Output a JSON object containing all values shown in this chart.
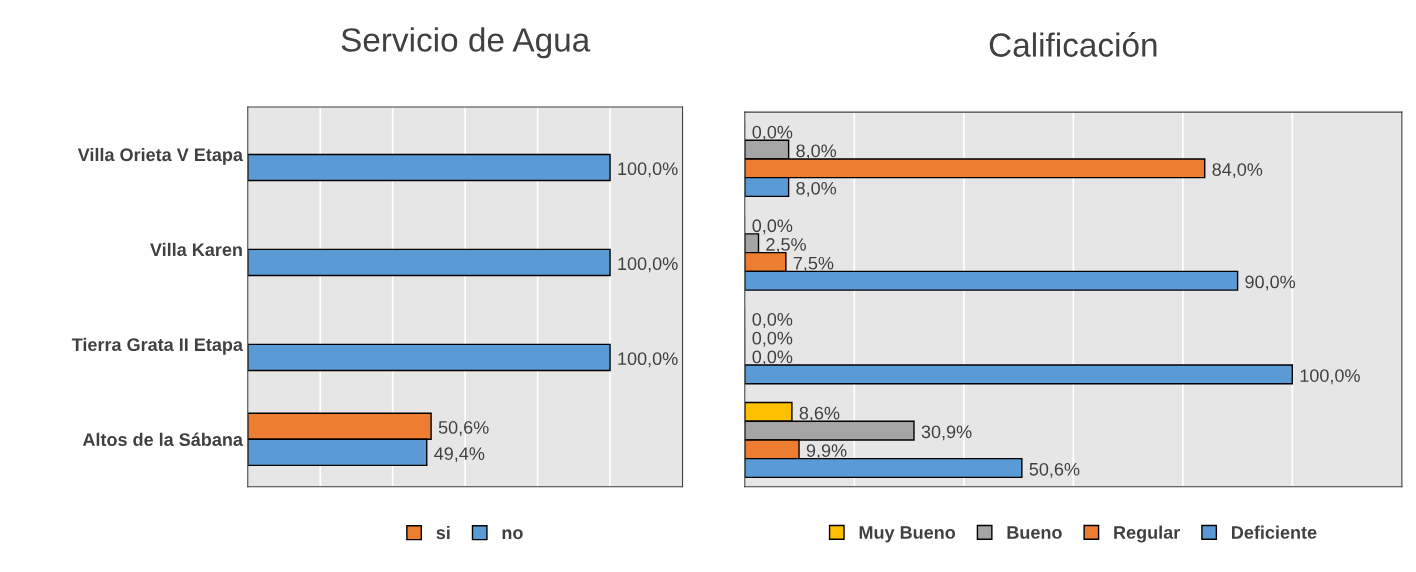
{
  "chart_data": [
    {
      "type": "bar",
      "orientation": "horizontal",
      "title": "Servicio de Agua",
      "categories": [
        "Villa Orieta V Etapa",
        "Villa Karen",
        "Tierra Grata II Etapa",
        "Altos de la Sábana"
      ],
      "series": [
        {
          "name": "si",
          "color": "#ed7d31",
          "values": [
            null,
            null,
            null,
            50.6
          ],
          "value_labels": [
            null,
            null,
            null,
            "50,6%"
          ]
        },
        {
          "name": "no",
          "color": "#5b9bd5",
          "values": [
            100.0,
            100.0,
            100.0,
            49.4
          ],
          "value_labels": [
            "100,0%",
            "100,0%",
            "100,0%",
            "49,4%"
          ]
        }
      ],
      "xlim": [
        0,
        120
      ],
      "xticks": [
        {
          "value": 0,
          "label": null
        },
        {
          "value": 20,
          "label": null
        },
        {
          "value": 40,
          "label": null
        },
        {
          "value": 60,
          "label": null
        },
        {
          "value": 80,
          "label": null
        },
        {
          "value": 100,
          "label": null
        },
        {
          "value": 120,
          "label": null
        }
      ],
      "grid": "x",
      "legend": "bottom",
      "tick_labels": "y"
    },
    {
      "type": "bar",
      "orientation": "horizontal",
      "title": "Calificación",
      "categories": [
        null,
        null,
        null,
        null
      ],
      "series": [
        {
          "name": "Muy Bueno",
          "color": "#ffc000",
          "values": [
            0.0,
            0.0,
            0.0,
            8.6
          ],
          "value_labels": [
            "0,0%",
            "0,0%",
            "0,0%",
            "8,6%"
          ]
        },
        {
          "name": "Bueno",
          "color": "#a5a5a5",
          "values": [
            8.0,
            2.5,
            0.0,
            30.9
          ],
          "value_labels": [
            "8,0%",
            "2,5%",
            "0,0%",
            "30,9%"
          ]
        },
        {
          "name": "Regular",
          "color": "#ed7d31",
          "values": [
            84.0,
            7.5,
            0.0,
            9.9
          ],
          "value_labels": [
            "84,0%",
            "7,5%",
            "0,0%",
            "9,9%"
          ]
        },
        {
          "name": "Deficiente",
          "color": "#5b9bd5",
          "values": [
            8.0,
            90.0,
            100.0,
            50.6
          ],
          "value_labels": [
            "8,0%",
            "90,0%",
            "100,0%",
            "50,6%"
          ]
        }
      ],
      "xlim": [
        0,
        120
      ],
      "xticks": [
        {
          "value": 0,
          "label": null
        },
        {
          "value": 20,
          "label": null
        },
        {
          "value": 40,
          "label": null
        },
        {
          "value": 60,
          "label": null
        },
        {
          "value": 80,
          "label": null
        },
        {
          "value": 100,
          "label": null
        },
        {
          "value": 120,
          "label": null
        }
      ],
      "grid": "x",
      "legend": "bottom",
      "tick_labels": false
    }
  ]
}
